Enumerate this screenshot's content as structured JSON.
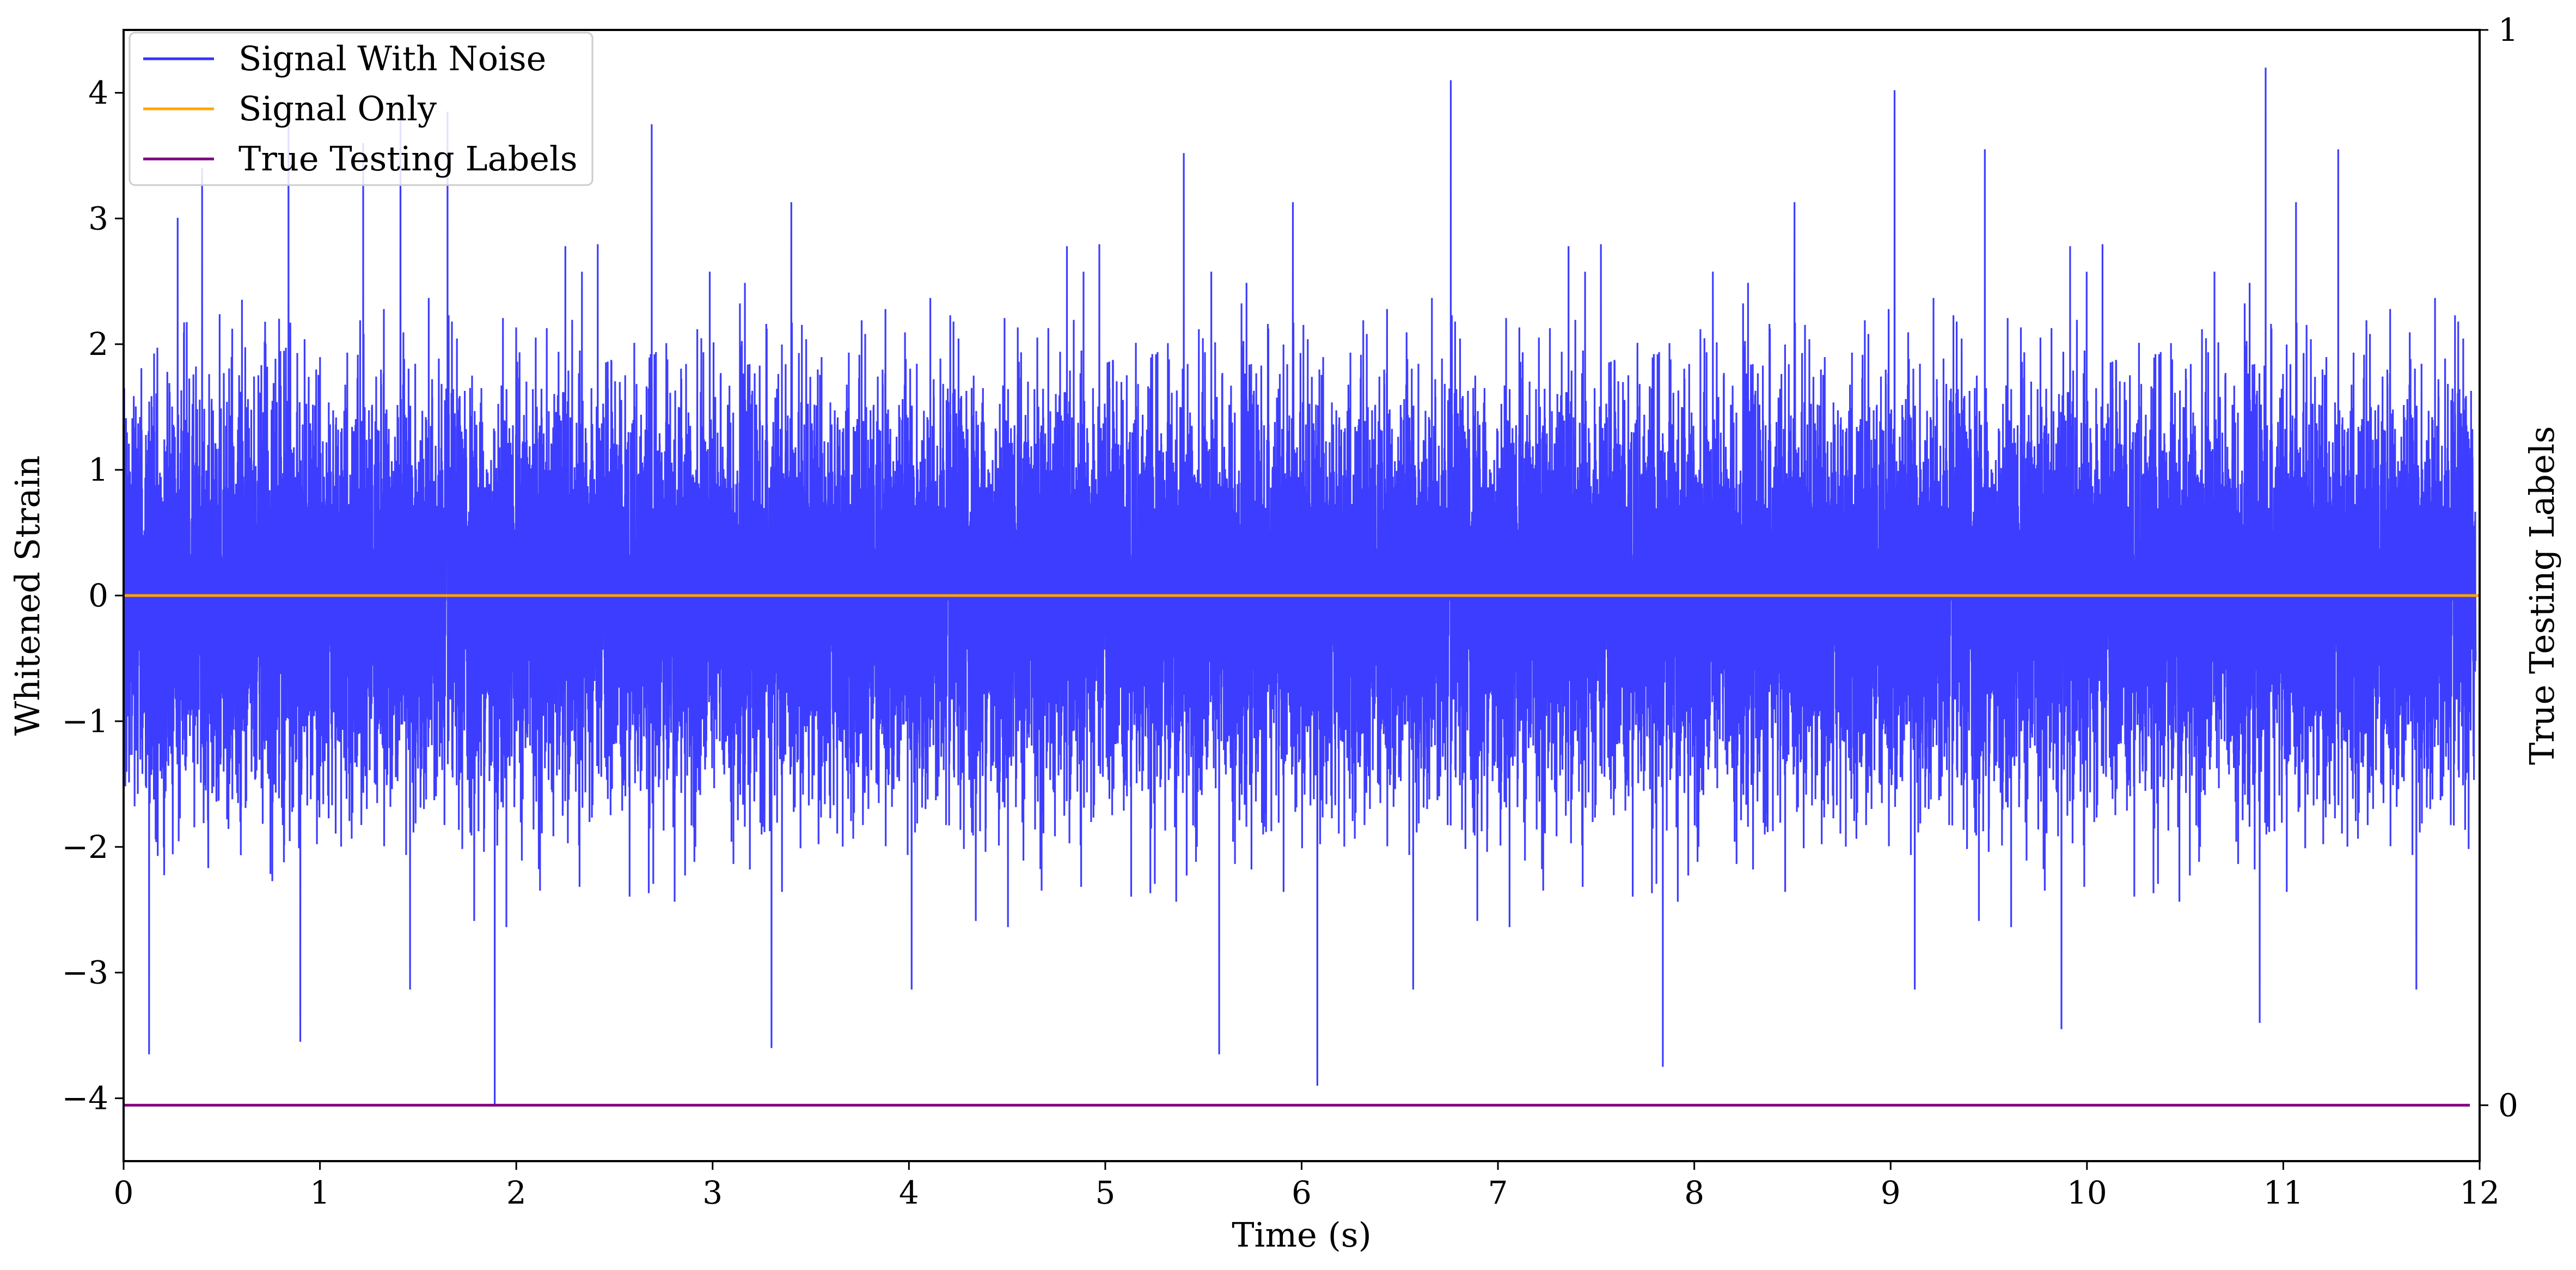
{
  "chart_data": {
    "type": "line",
    "xlabel": "Time (s)",
    "ylabel": "Whitened Strain",
    "y2label": "True Testing Labels",
    "xlim": [
      0,
      12
    ],
    "ylim": [
      -4.5,
      4.5
    ],
    "y2lim": [
      -0.052,
      1.0
    ],
    "xticks": [
      "0",
      "1",
      "2",
      "3",
      "4",
      "5",
      "6",
      "7",
      "8",
      "9",
      "10",
      "11",
      "12"
    ],
    "yticks": [
      {
        "value": 4,
        "label": "4"
      },
      {
        "value": 3,
        "label": "3"
      },
      {
        "value": 2,
        "label": "2"
      },
      {
        "value": 1,
        "label": "1"
      },
      {
        "value": 0,
        "label": "0"
      },
      {
        "value": -1,
        "label": "−1"
      },
      {
        "value": -2,
        "label": "−2"
      },
      {
        "value": -3,
        "label": "−3"
      },
      {
        "value": -4,
        "label": "−4"
      }
    ],
    "y2ticks": [
      {
        "value": 1,
        "label": "1"
      },
      {
        "value": 0,
        "label": "0"
      }
    ],
    "legend_position": "top-left",
    "grid": false,
    "series": [
      {
        "name": "Signal With Noise",
        "color": "#3333ff",
        "axis": "left",
        "sample_rate_hz": 4096,
        "amplitude_std": 0.78,
        "peaks": [
          {
            "x": 0.4,
            "y": 3.4
          },
          {
            "x": 0.84,
            "y": 3.9
          },
          {
            "x": 1.22,
            "y": 3.6
          },
          {
            "x": 1.41,
            "y": 3.9
          },
          {
            "x": 1.65,
            "y": 3.85
          },
          {
            "x": 2.69,
            "y": 3.75
          },
          {
            "x": 5.4,
            "y": 3.52
          },
          {
            "x": 6.76,
            "y": 4.1
          },
          {
            "x": 9.02,
            "y": 4.02
          },
          {
            "x": 9.48,
            "y": 3.55
          },
          {
            "x": 10.91,
            "y": 4.2
          },
          {
            "x": 11.28,
            "y": 3.55
          },
          {
            "x": 0.9,
            "y": -3.55
          },
          {
            "x": 0.13,
            "y": -3.65
          },
          {
            "x": 1.89,
            "y": -4.05
          },
          {
            "x": 3.3,
            "y": -3.6
          },
          {
            "x": 6.08,
            "y": -3.9
          },
          {
            "x": 5.58,
            "y": -3.65
          },
          {
            "x": 7.84,
            "y": -3.75
          },
          {
            "x": 9.87,
            "y": -3.45
          },
          {
            "x": 10.88,
            "y": -3.4
          }
        ]
      },
      {
        "name": "Signal Only",
        "color": "#ffa500",
        "axis": "left",
        "x": [
          0,
          12
        ],
        "y": [
          0,
          0
        ]
      },
      {
        "name": "True Testing Labels",
        "color": "#800080",
        "axis": "right",
        "x": [
          0,
          11.95
        ],
        "y": [
          0,
          0
        ]
      }
    ]
  }
}
